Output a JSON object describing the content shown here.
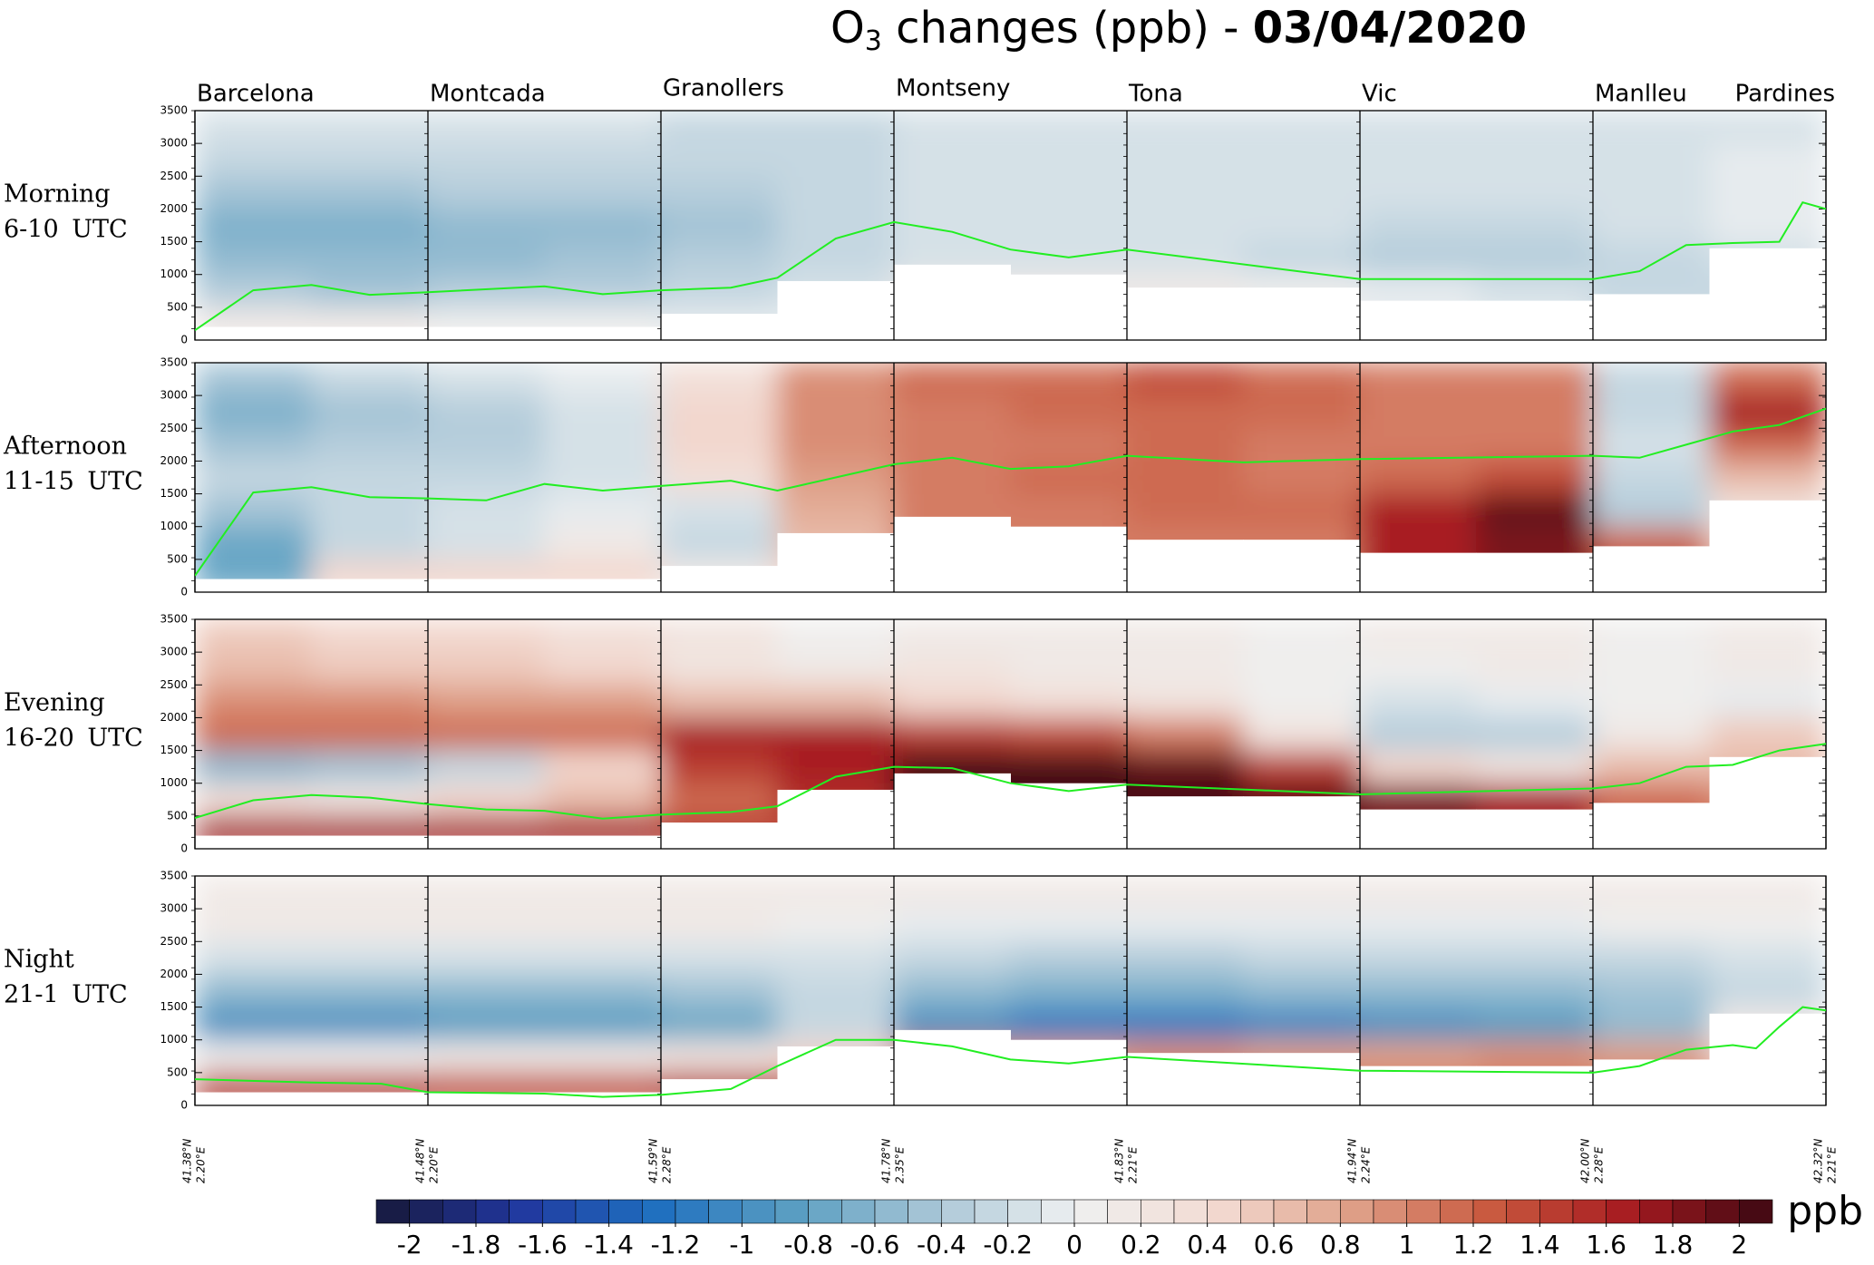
{
  "title": {
    "main": "O",
    "sub": "3",
    "rest": " changes (ppb) - ",
    "date": "03/04/2020"
  },
  "stations": [
    "Barcelona",
    "Montcada",
    "Granollers",
    "Montseny",
    "Tona",
    "Vic",
    "Manlleu",
    "Pardines"
  ],
  "coords": [
    [
      "41.38°N",
      "2.20°E"
    ],
    [
      "41.48°N",
      "2.20°E"
    ],
    [
      "41.59°N",
      "2.28°E"
    ],
    [
      "41.78°N",
      "2.35°E"
    ],
    [
      "41.83°N",
      "2.21°E"
    ],
    [
      "41.94°N",
      "2.24°E"
    ],
    [
      "42.00°N",
      "2.28°E"
    ],
    [
      "42.32°N",
      "2.21°E"
    ]
  ],
  "colorbar": {
    "label": "ppb",
    "clim": [
      -2.1,
      2.1
    ],
    "nlevels": 42,
    "ticks": [
      -2,
      -1.8,
      -1.6,
      -1.4,
      -1.2,
      -1,
      -0.8,
      -0.6,
      -0.4,
      -0.2,
      0,
      0.2,
      0.4,
      0.6,
      0.8,
      1,
      1.2,
      1.4,
      1.6,
      1.8,
      2
    ],
    "colormap": [
      "#17183a",
      "#21369e",
      "#1f6fbf",
      "#5a9ec2",
      "#a9c6d6",
      "#eef0f1",
      "#f3dbd3",
      "#dfa088",
      "#c8583e",
      "#a61a20",
      "#3a0812"
    ]
  },
  "chart_data": [
    {
      "type": "contour",
      "label_1": "Morning",
      "label_2": "6-10 UTC",
      "ylim": [
        0,
        3500
      ],
      "yticks": [
        0,
        500,
        1000,
        1500,
        2000,
        2500,
        3000,
        3500
      ],
      "pbl_color": "#22ee22",
      "field": [
        [
          0.1,
          0.1,
          0.0,
          0.0,
          -0.1,
          -0.1,
          -0.2,
          -0.2,
          -0.1,
          -0.1,
          -0.1,
          -0.1,
          -0.2,
          -0.2
        ],
        [
          -0.4,
          -0.5,
          -0.4,
          -0.4,
          -0.3,
          -0.2,
          0.1,
          0.1,
          0.1,
          0.0,
          -0.1,
          -0.2,
          -0.3,
          -0.3
        ],
        [
          -0.6,
          -0.6,
          -0.6,
          -0.5,
          -0.4,
          -0.3,
          -0.2,
          -0.2,
          -0.2,
          -0.3,
          -0.4,
          -0.4,
          -0.3,
          -0.2
        ],
        [
          -0.7,
          -0.7,
          -0.6,
          -0.6,
          -0.5,
          -0.3,
          -0.2,
          -0.2,
          -0.2,
          -0.2,
          -0.3,
          -0.3,
          -0.2,
          -0.1
        ],
        [
          -0.5,
          -0.5,
          -0.4,
          -0.4,
          -0.4,
          -0.3,
          -0.2,
          -0.2,
          -0.2,
          -0.2,
          -0.2,
          -0.2,
          -0.2,
          -0.1
        ],
        [
          -0.3,
          -0.3,
          -0.3,
          -0.3,
          -0.3,
          -0.3,
          -0.2,
          -0.2,
          -0.2,
          -0.2,
          -0.2,
          -0.2,
          -0.2,
          -0.1
        ],
        [
          -0.2,
          -0.2,
          -0.2,
          -0.2,
          -0.3,
          -0.3,
          -0.2,
          -0.2,
          -0.2,
          -0.2,
          -0.2,
          -0.2,
          -0.2,
          -0.2
        ]
      ],
      "terrain": [
        200,
        200,
        200,
        200,
        400,
        900,
        1150,
        1000,
        800,
        800,
        600,
        600,
        700,
        1400
      ],
      "pbl_x": [
        0,
        0.25,
        0.5,
        0.75,
        1,
        1.5,
        1.75,
        2,
        2.3,
        2.5,
        2.75,
        3,
        3.25,
        3.5,
        3.75,
        4,
        5,
        6,
        6.2,
        6.4,
        6.6,
        6.8,
        6.9,
        7
      ],
      "pbl": [
        150,
        760,
        840,
        690,
        730,
        820,
        700,
        760,
        800,
        950,
        1550,
        1800,
        1650,
        1380,
        1260,
        1380,
        930,
        930,
        1050,
        1450,
        1480,
        1500,
        2100,
        2000
      ]
    },
    {
      "type": "contour",
      "label_1": "Afternoon",
      "label_2": "11-15 UTC",
      "ylim": [
        0,
        3500
      ],
      "yticks": [
        0,
        500,
        1000,
        1500,
        2000,
        2500,
        3000,
        3500
      ],
      "pbl_color": "#22ee22",
      "field": [
        [
          -0.8,
          0.4,
          0.4,
          0.4,
          0.1,
          0.4,
          0.8,
          1.0,
          1.0,
          1.0,
          1.6,
          1.8,
          1.4,
          0.6
        ],
        [
          -0.8,
          -0.3,
          -0.2,
          0.1,
          -0.3,
          0.6,
          1.0,
          1.0,
          1.0,
          1.0,
          1.6,
          1.8,
          1.2,
          0.4
        ],
        [
          -0.5,
          -0.3,
          -0.2,
          -0.1,
          -0.2,
          0.7,
          1.0,
          1.0,
          1.1,
          1.1,
          1.7,
          1.9,
          -0.4,
          0.2
        ],
        [
          -0.3,
          -0.3,
          -0.3,
          -0.2,
          0.3,
          0.8,
          1.0,
          1.1,
          1.1,
          1.0,
          1.2,
          1.3,
          -0.3,
          0.6
        ],
        [
          -0.5,
          -0.4,
          -0.4,
          -0.2,
          0.4,
          0.9,
          1.0,
          1.0,
          1.1,
          1.0,
          1.0,
          1.0,
          -0.2,
          1.2
        ],
        [
          -0.7,
          -0.5,
          -0.4,
          -0.2,
          0.4,
          0.9,
          1.0,
          1.1,
          1.2,
          1.1,
          1.0,
          1.0,
          -0.3,
          1.6
        ],
        [
          -0.5,
          -0.3,
          -0.2,
          -0.1,
          0.3,
          0.9,
          1.1,
          1.1,
          1.3,
          1.2,
          1.0,
          1.0,
          -0.3,
          1.2
        ]
      ],
      "terrain": [
        200,
        200,
        200,
        200,
        400,
        900,
        1150,
        1000,
        800,
        800,
        600,
        600,
        700,
        1400
      ],
      "pbl_x": [
        0,
        0.25,
        0.5,
        0.75,
        1,
        1.25,
        1.5,
        1.75,
        2,
        2.3,
        2.5,
        2.75,
        3,
        3.25,
        3.5,
        3.75,
        4,
        4.5,
        5,
        6,
        6.2,
        6.4,
        6.6,
        6.8,
        7
      ],
      "pbl": [
        250,
        1520,
        1600,
        1450,
        1430,
        1400,
        1650,
        1550,
        1620,
        1700,
        1550,
        1750,
        1950,
        2050,
        1880,
        1920,
        2080,
        1980,
        2030,
        2080,
        2050,
        2250,
        2450,
        2550,
        2800
      ]
    },
    {
      "type": "contour",
      "label_1": "Evening",
      "label_2": "16-20 UTC",
      "ylim": [
        0,
        3500
      ],
      "yticks": [
        0,
        500,
        1000,
        1500,
        2000,
        2500,
        3000,
        3500
      ],
      "pbl_color": "#22ee22",
      "field": [
        [
          1.7,
          1.7,
          1.7,
          1.6,
          1.4,
          1.4,
          1.6,
          2.0,
          2.0,
          1.9,
          1.8,
          1.7,
          1.2,
          1.0
        ],
        [
          0.3,
          0.2,
          0.4,
          0.6,
          1.2,
          1.5,
          2.1,
          2.1,
          2.1,
          2.0,
          1.8,
          1.6,
          1.2,
          0.9
        ],
        [
          -0.6,
          -0.5,
          -0.3,
          0.4,
          1.4,
          1.7,
          2.1,
          2.1,
          2.0,
          1.4,
          0.4,
          0.2,
          0.6,
          0.6
        ],
        [
          1.2,
          1.2,
          1.1,
          1.2,
          1.6,
          1.7,
          1.4,
          1.3,
          1.0,
          0.2,
          -0.4,
          -0.4,
          0.1,
          0.5
        ],
        [
          0.9,
          0.9,
          0.8,
          0.8,
          0.6,
          0.6,
          0.4,
          0.3,
          0.2,
          0.0,
          -0.2,
          -0.1,
          0.0,
          -0.1
        ],
        [
          0.6,
          0.5,
          0.5,
          0.4,
          0.2,
          0.1,
          0.2,
          0.1,
          0.1,
          0.0,
          0.0,
          0.1,
          0.0,
          0.1
        ],
        [
          0.5,
          0.4,
          0.4,
          0.3,
          0.2,
          0.0,
          0.1,
          0.1,
          0.1,
          0.0,
          0.1,
          0.1,
          0.0,
          0.1
        ]
      ],
      "terrain": [
        200,
        200,
        200,
        200,
        400,
        900,
        1150,
        1000,
        800,
        800,
        600,
        600,
        700,
        1400
      ],
      "pbl_x": [
        0,
        0.25,
        0.5,
        0.75,
        1,
        1.25,
        1.5,
        1.75,
        2,
        2.3,
        2.5,
        2.75,
        3,
        3.25,
        3.5,
        3.75,
        4,
        5,
        6,
        6.2,
        6.4,
        6.6,
        6.8,
        7
      ],
      "pbl": [
        470,
        740,
        820,
        780,
        680,
        600,
        580,
        460,
        520,
        560,
        650,
        1100,
        1250,
        1230,
        1000,
        880,
        980,
        830,
        920,
        1000,
        1250,
        1280,
        1500,
        1600
      ]
    },
    {
      "type": "contour",
      "label_1": "Night",
      "label_2": "21-1 UTC",
      "ylim": [
        0,
        3500
      ],
      "yticks": [
        0,
        500,
        1000,
        1500,
        2000,
        2500,
        3000,
        3500
      ],
      "pbl_color": "#22ee22",
      "field": [
        [
          1.4,
          1.4,
          1.3,
          1.3,
          1.5,
          1.3,
          1.1,
          1.0,
          1.1,
          1.1,
          1.0,
          1.0,
          1.0,
          0.6
        ],
        [
          0.0,
          0.0,
          0.1,
          0.1,
          0.2,
          0.4,
          0.9,
          0.8,
          0.9,
          0.8,
          0.8,
          0.9,
          0.8,
          0.4
        ],
        [
          -1.0,
          -1.0,
          -0.9,
          -0.9,
          -0.8,
          -0.3,
          -1.0,
          -1.2,
          -1.2,
          -1.1,
          -1.0,
          -0.9,
          -0.6,
          0.1
        ],
        [
          -0.6,
          -0.6,
          -0.6,
          -0.6,
          -0.5,
          -0.3,
          -0.6,
          -0.7,
          -0.7,
          -0.6,
          -0.6,
          -0.6,
          -0.5,
          -0.3
        ],
        [
          -0.2,
          -0.2,
          -0.2,
          -0.2,
          -0.2,
          -0.2,
          -0.3,
          -0.4,
          -0.4,
          -0.3,
          -0.3,
          -0.3,
          -0.3,
          -0.2
        ],
        [
          0.1,
          0.1,
          0.1,
          0.1,
          0.1,
          0.0,
          -0.1,
          -0.1,
          -0.1,
          -0.1,
          -0.1,
          -0.1,
          0.0,
          0.0
        ],
        [
          0.1,
          0.1,
          0.1,
          0.1,
          0.1,
          0.1,
          0.1,
          0.1,
          0.1,
          0.1,
          0.1,
          0.1,
          0.1,
          0.1
        ]
      ],
      "terrain": [
        200,
        200,
        200,
        200,
        400,
        900,
        1150,
        1000,
        800,
        800,
        600,
        600,
        700,
        1400
      ],
      "pbl_x": [
        0,
        0.5,
        0.8,
        1,
        1.5,
        1.75,
        2,
        2.3,
        2.5,
        2.75,
        3,
        3.25,
        3.5,
        3.75,
        4,
        5,
        6,
        6.2,
        6.4,
        6.6,
        6.7,
        6.8,
        6.9,
        7
      ],
      "pbl": [
        400,
        350,
        330,
        200,
        180,
        130,
        160,
        250,
        600,
        1000,
        1000,
        900,
        700,
        640,
        740,
        530,
        500,
        600,
        850,
        920,
        870,
        1200,
        1500,
        1450
      ]
    }
  ]
}
